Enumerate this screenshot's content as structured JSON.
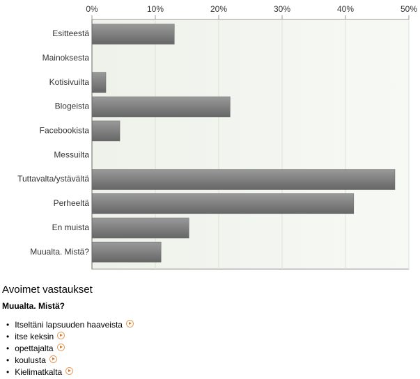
{
  "chart_data": {
    "type": "barh",
    "categories": [
      "Esitteestä",
      "Mainoksesta",
      "Kotisivuilta",
      "Blogeista",
      "Facebookista",
      "Messuilta",
      "Tuttavalta/ystävältä",
      "Perheeltä",
      "En muista",
      "Muualta. Mistä?"
    ],
    "values": [
      13.0,
      0,
      2.2,
      21.8,
      4.4,
      0,
      47.8,
      41.3,
      15.3,
      10.9
    ],
    "color": "#7a7a7a",
    "xlim": [
      0,
      50
    ],
    "xticks": [
      {
        "value": 0,
        "label": "0%"
      },
      {
        "value": 10,
        "label": "10%"
      },
      {
        "value": 20,
        "label": "20%"
      },
      {
        "value": 30,
        "label": "30%"
      },
      {
        "value": 40,
        "label": "40%"
      },
      {
        "value": 50,
        "label": "50%"
      }
    ],
    "grid": true
  },
  "open_answers": {
    "title": "Avoimet vastaukset",
    "question": "Muualta. Mistä?",
    "items": [
      "Itseltäni lapsuuden haaveista",
      "itse keksin",
      "opettajalta",
      "koulusta",
      "Kielimatkalta"
    ]
  }
}
